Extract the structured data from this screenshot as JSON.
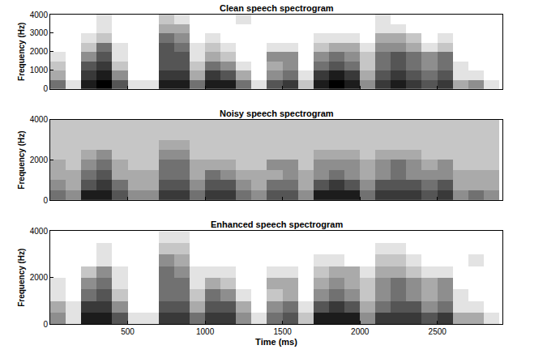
{
  "chart_data": [
    {
      "type": "heatmap",
      "title": "Clean speech spectrogram",
      "y_label": "Frequency (Hz)",
      "x": [
        50,
        150,
        250,
        350,
        450,
        550,
        650,
        750,
        850,
        950,
        1050,
        1150,
        1250,
        1350,
        1450,
        1550,
        1650,
        1750,
        1850,
        1950,
        2050,
        2150,
        2250,
        2350,
        2450,
        2550,
        2650,
        2750,
        2850
      ],
      "y": [
        250,
        750,
        1250,
        1750,
        2250,
        2750,
        3250,
        3750
      ],
      "cells": [
        [
          5,
          1,
          8,
          9,
          6,
          1,
          1,
          8,
          8,
          5,
          8,
          8,
          5,
          1,
          6,
          7,
          2,
          8,
          9,
          8,
          4,
          7,
          8,
          7,
          6,
          7,
          3,
          4,
          1
        ],
        [
          3,
          0,
          7,
          8,
          4,
          0,
          0,
          7,
          7,
          3,
          7,
          6,
          3,
          0,
          4,
          5,
          1,
          7,
          8,
          7,
          3,
          6,
          7,
          6,
          5,
          6,
          1,
          1,
          0
        ],
        [
          2,
          0,
          6,
          7,
          2,
          0,
          0,
          6,
          6,
          2,
          5,
          4,
          1,
          0,
          3,
          4,
          0,
          5,
          6,
          5,
          2,
          5,
          6,
          5,
          4,
          5,
          1,
          0,
          0
        ],
        [
          1,
          0,
          4,
          6,
          1,
          0,
          0,
          6,
          6,
          1,
          3,
          2,
          0,
          0,
          4,
          4,
          0,
          4,
          5,
          4,
          2,
          5,
          6,
          5,
          4,
          5,
          0,
          0,
          0
        ],
        [
          0,
          0,
          2,
          5,
          1,
          0,
          0,
          6,
          5,
          1,
          2,
          1,
          0,
          0,
          1,
          1,
          0,
          2,
          3,
          3,
          1,
          4,
          4,
          3,
          1,
          2,
          0,
          0,
          0
        ],
        [
          0,
          0,
          1,
          2,
          0,
          0,
          0,
          5,
          4,
          0,
          1,
          0,
          0,
          0,
          0,
          0,
          0,
          1,
          1,
          1,
          0,
          3,
          3,
          2,
          0,
          1,
          0,
          0,
          0
        ],
        [
          0,
          0,
          0,
          1,
          0,
          0,
          0,
          3,
          3,
          0,
          0,
          0,
          0,
          0,
          0,
          0,
          0,
          0,
          0,
          0,
          0,
          1,
          1,
          0,
          0,
          0,
          0,
          0,
          0
        ],
        [
          0,
          0,
          0,
          1,
          0,
          0,
          0,
          2,
          1,
          0,
          0,
          0,
          1,
          0,
          0,
          0,
          0,
          0,
          0,
          0,
          0,
          1,
          0,
          0,
          0,
          0,
          0,
          0,
          0
        ]
      ],
      "zlim": [
        0,
        9
      ],
      "xlim": [
        0,
        2920
      ],
      "ylim": [
        0,
        4000
      ],
      "xticks": [
        500,
        1000,
        1500,
        2000,
        2500
      ],
      "yticks": [
        0,
        1000,
        2000,
        3000,
        4000
      ],
      "tick_labels": "y",
      "grid": false
    },
    {
      "type": "heatmap",
      "title": "Noisy speech spectrogram",
      "y_label": "Frequency (Hz)",
      "x": [
        50,
        150,
        250,
        350,
        450,
        550,
        650,
        750,
        850,
        950,
        1050,
        1150,
        1250,
        1350,
        1450,
        1550,
        1650,
        1750,
        1850,
        1950,
        2050,
        2150,
        2250,
        2350,
        2450,
        2550,
        2650,
        2750,
        2850
      ],
      "y": [
        250,
        750,
        1250,
        1750,
        2250,
        2750,
        3250,
        3750
      ],
      "cells": [
        [
          5,
          4,
          8,
          8,
          6,
          4,
          4,
          7,
          7,
          5,
          7,
          7,
          5,
          4,
          6,
          6,
          4,
          8,
          8,
          8,
          5,
          7,
          7,
          7,
          6,
          7,
          4,
          5,
          4
        ],
        [
          4,
          3,
          6,
          7,
          5,
          3,
          3,
          6,
          6,
          4,
          6,
          6,
          4,
          3,
          5,
          5,
          3,
          6,
          7,
          6,
          4,
          6,
          6,
          6,
          5,
          6,
          3,
          3,
          3
        ],
        [
          3,
          3,
          5,
          6,
          3,
          3,
          3,
          5,
          5,
          3,
          5,
          4,
          3,
          3,
          3,
          4,
          3,
          4,
          5,
          4,
          3,
          4,
          5,
          4,
          4,
          4,
          3,
          3,
          3
        ],
        [
          3,
          2,
          4,
          5,
          3,
          2,
          2,
          5,
          5,
          3,
          3,
          3,
          2,
          2,
          4,
          4,
          2,
          4,
          4,
          4,
          3,
          4,
          5,
          4,
          3,
          4,
          2,
          2,
          2
        ],
        [
          2,
          2,
          3,
          4,
          2,
          2,
          2,
          4,
          4,
          2,
          2,
          2,
          2,
          2,
          2,
          2,
          2,
          3,
          3,
          3,
          2,
          3,
          3,
          3,
          2,
          2,
          2,
          2,
          2
        ],
        [
          2,
          2,
          2,
          2,
          2,
          2,
          2,
          3,
          3,
          2,
          2,
          2,
          2,
          2,
          2,
          2,
          2,
          2,
          2,
          2,
          2,
          2,
          2,
          2,
          2,
          2,
          2,
          2,
          2
        ],
        [
          2,
          2,
          2,
          2,
          2,
          2,
          2,
          2,
          2,
          2,
          2,
          2,
          2,
          2,
          2,
          2,
          2,
          2,
          2,
          2,
          2,
          2,
          2,
          2,
          2,
          2,
          2,
          2,
          2
        ],
        [
          2,
          2,
          2,
          2,
          2,
          2,
          2,
          2,
          2,
          2,
          2,
          2,
          2,
          2,
          2,
          2,
          2,
          2,
          2,
          2,
          2,
          2,
          2,
          2,
          2,
          2,
          2,
          2,
          2
        ]
      ],
      "zlim": [
        0,
        9
      ],
      "xlim": [
        0,
        2920
      ],
      "ylim": [
        0,
        4000
      ],
      "xticks": [
        500,
        1000,
        1500,
        2000,
        2500
      ],
      "yticks": [
        0,
        2000,
        4000
      ],
      "tick_labels": "y",
      "grid": false
    },
    {
      "type": "heatmap",
      "title": "Enhanced speech spectrogram",
      "y_label": "Frequency (Hz)",
      "x_label": "Time (ms)",
      "x": [
        50,
        150,
        250,
        350,
        450,
        550,
        650,
        750,
        850,
        950,
        1050,
        1150,
        1250,
        1350,
        1450,
        1550,
        1650,
        1750,
        1850,
        1950,
        2050,
        2150,
        2250,
        2350,
        2450,
        2550,
        2650,
        2750,
        2850
      ],
      "y": [
        250,
        750,
        1250,
        1750,
        2250,
        2750,
        3250,
        3750
      ],
      "cells": [
        [
          4,
          1,
          8,
          8,
          6,
          1,
          1,
          7,
          7,
          5,
          7,
          7,
          4,
          1,
          5,
          6,
          2,
          8,
          8,
          8,
          4,
          7,
          7,
          7,
          6,
          7,
          3,
          3,
          1
        ],
        [
          3,
          1,
          7,
          7,
          4,
          0,
          0,
          6,
          6,
          3,
          6,
          6,
          3,
          0,
          4,
          5,
          1,
          6,
          7,
          6,
          3,
          5,
          6,
          6,
          4,
          5,
          1,
          1,
          0
        ],
        [
          1,
          0,
          5,
          6,
          2,
          0,
          0,
          5,
          5,
          2,
          5,
          4,
          1,
          0,
          2,
          3,
          0,
          4,
          5,
          4,
          2,
          4,
          5,
          4,
          3,
          4,
          1,
          0,
          0
        ],
        [
          1,
          0,
          4,
          5,
          1,
          0,
          0,
          5,
          5,
          1,
          3,
          2,
          0,
          0,
          3,
          3,
          0,
          3,
          4,
          3,
          2,
          4,
          5,
          4,
          3,
          4,
          0,
          0,
          0
        ],
        [
          0,
          0,
          2,
          4,
          1,
          0,
          0,
          5,
          4,
          1,
          1,
          1,
          0,
          0,
          1,
          1,
          0,
          2,
          3,
          3,
          1,
          3,
          3,
          2,
          1,
          1,
          0,
          0,
          0
        ],
        [
          0,
          0,
          0,
          1,
          0,
          0,
          0,
          4,
          3,
          0,
          0,
          0,
          0,
          0,
          0,
          0,
          0,
          1,
          1,
          0,
          0,
          2,
          2,
          1,
          0,
          0,
          0,
          1,
          0
        ],
        [
          0,
          0,
          0,
          1,
          0,
          0,
          0,
          2,
          2,
          0,
          0,
          0,
          0,
          0,
          0,
          0,
          0,
          0,
          0,
          0,
          0,
          1,
          1,
          0,
          0,
          0,
          0,
          0,
          0
        ],
        [
          0,
          0,
          0,
          0,
          0,
          0,
          0,
          1,
          1,
          0,
          0,
          0,
          0,
          0,
          0,
          0,
          0,
          0,
          0,
          0,
          0,
          0,
          0,
          0,
          0,
          0,
          0,
          0,
          0
        ]
      ],
      "zlim": [
        0,
        9
      ],
      "xlim": [
        0,
        2920
      ],
      "ylim": [
        0,
        4000
      ],
      "xticks": [
        500,
        1000,
        1500,
        2000,
        2500
      ],
      "yticks": [
        0,
        2000,
        4000
      ],
      "tick_labels": true,
      "grid": false
    }
  ]
}
